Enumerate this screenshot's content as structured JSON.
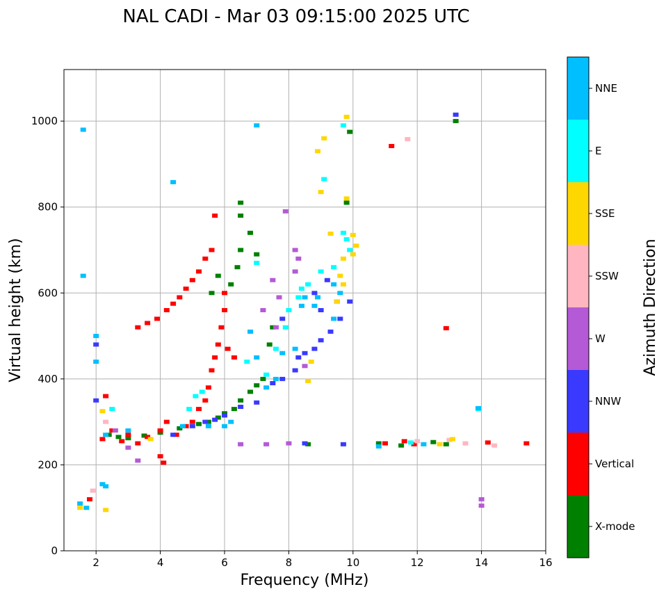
{
  "chart_data": {
    "type": "scatter",
    "title": "NAL CADI - Mar 03 09:15:00 2025 UTC",
    "xlabel": "Frequency (MHz)",
    "ylabel": "Virtual height (km)",
    "xlim": [
      1,
      16
    ],
    "ylim": [
      0,
      1120
    ],
    "xticks": [
      2,
      4,
      6,
      8,
      10,
      12,
      14,
      16
    ],
    "yticks": [
      0,
      200,
      400,
      600,
      800,
      1000
    ],
    "grid": true,
    "colorbar": {
      "label": "Azimuth Direction",
      "categories": [
        {
          "name": "X-mode",
          "color": "#008000"
        },
        {
          "name": "Vertical",
          "color": "#ff0000"
        },
        {
          "name": "NNW",
          "color": "#3a3aff"
        },
        {
          "name": "W",
          "color": "#b45ad6"
        },
        {
          "name": "SSW",
          "color": "#ffb6c1"
        },
        {
          "name": "SSE",
          "color": "#ffd700"
        },
        {
          "name": "E",
          "color": "#00ffff"
        },
        {
          "name": "NNE",
          "color": "#00bfff"
        }
      ]
    },
    "series": [
      {
        "name": "X-mode",
        "points": [
          [
            2.4,
            270
          ],
          [
            2.7,
            265
          ],
          [
            3.0,
            262
          ],
          [
            3.5,
            268
          ],
          [
            4.0,
            275
          ],
          [
            4.6,
            285
          ],
          [
            5.2,
            295
          ],
          [
            5.5,
            300
          ],
          [
            5.8,
            310
          ],
          [
            6.0,
            320
          ],
          [
            6.3,
            330
          ],
          [
            6.5,
            350
          ],
          [
            6.8,
            370
          ],
          [
            7.0,
            385
          ],
          [
            7.2,
            400
          ],
          [
            6.2,
            620
          ],
          [
            6.4,
            660
          ],
          [
            6.5,
            700
          ],
          [
            6.5,
            780
          ],
          [
            6.5,
            810
          ],
          [
            6.8,
            740
          ],
          [
            7.0,
            690
          ],
          [
            5.8,
            640
          ],
          [
            5.6,
            600
          ],
          [
            8.6,
            248
          ],
          [
            10.8,
            250
          ],
          [
            11.5,
            245
          ],
          [
            12.5,
            253
          ],
          [
            12.9,
            248
          ],
          [
            13.2,
            1000
          ],
          [
            9.8,
            810
          ],
          [
            9.9,
            975
          ],
          [
            7.5,
            520
          ],
          [
            7.4,
            480
          ]
        ]
      },
      {
        "name": "Vertical",
        "points": [
          [
            2.2,
            260
          ],
          [
            2.5,
            280
          ],
          [
            2.8,
            255
          ],
          [
            3.0,
            270
          ],
          [
            3.3,
            250
          ],
          [
            3.6,
            265
          ],
          [
            4.0,
            280
          ],
          [
            4.2,
            300
          ],
          [
            4.5,
            270
          ],
          [
            4.8,
            290
          ],
          [
            5.0,
            300
          ],
          [
            5.2,
            330
          ],
          [
            5.4,
            350
          ],
          [
            5.5,
            380
          ],
          [
            5.6,
            420
          ],
          [
            5.7,
            450
          ],
          [
            5.8,
            480
          ],
          [
            5.9,
            520
          ],
          [
            6.0,
            560
          ],
          [
            6.0,
            600
          ],
          [
            3.3,
            520
          ],
          [
            3.6,
            530
          ],
          [
            3.9,
            540
          ],
          [
            4.2,
            560
          ],
          [
            4.4,
            575
          ],
          [
            4.6,
            590
          ],
          [
            4.8,
            610
          ],
          [
            5.0,
            630
          ],
          [
            5.2,
            650
          ],
          [
            5.4,
            680
          ],
          [
            5.6,
            700
          ],
          [
            5.7,
            780
          ],
          [
            4.0,
            220
          ],
          [
            4.1,
            205
          ],
          [
            1.8,
            120
          ],
          [
            2.3,
            360
          ],
          [
            11.0,
            250
          ],
          [
            11.6,
            255
          ],
          [
            11.9,
            248
          ],
          [
            12.9,
            518
          ],
          [
            15.4,
            250
          ],
          [
            14.2,
            252
          ],
          [
            11.2,
            942
          ],
          [
            6.1,
            470
          ],
          [
            6.3,
            450
          ]
        ]
      },
      {
        "name": "NNW",
        "points": [
          [
            4.4,
            270
          ],
          [
            5.0,
            290
          ],
          [
            5.4,
            300
          ],
          [
            5.7,
            305
          ],
          [
            6.0,
            315
          ],
          [
            6.5,
            335
          ],
          [
            7.0,
            345
          ],
          [
            7.5,
            390
          ],
          [
            7.8,
            400
          ],
          [
            8.2,
            420
          ],
          [
            8.3,
            450
          ],
          [
            8.5,
            460
          ],
          [
            8.8,
            470
          ],
          [
            9.0,
            490
          ],
          [
            9.3,
            510
          ],
          [
            9.6,
            540
          ],
          [
            9.9,
            580
          ],
          [
            8.8,
            600
          ],
          [
            9.2,
            630
          ],
          [
            9.5,
            580
          ],
          [
            8.5,
            250
          ],
          [
            9.7,
            248
          ],
          [
            13.2,
            1015
          ],
          [
            2.0,
            480
          ],
          [
            2.0,
            350
          ],
          [
            7.8,
            540
          ],
          [
            9.0,
            560
          ]
        ]
      },
      {
        "name": "W",
        "points": [
          [
            8.2,
            700
          ],
          [
            8.3,
            680
          ],
          [
            8.2,
            650
          ],
          [
            7.9,
            790
          ],
          [
            7.5,
            630
          ],
          [
            7.7,
            590
          ],
          [
            8.5,
            430
          ],
          [
            2.6,
            280
          ],
          [
            3.0,
            240
          ],
          [
            3.3,
            210
          ],
          [
            14.0,
            120
          ],
          [
            14.0,
            105
          ],
          [
            6.5,
            248
          ],
          [
            7.3,
            248
          ],
          [
            8.0,
            250
          ],
          [
            7.6,
            520
          ],
          [
            7.2,
            560
          ]
        ]
      },
      {
        "name": "SSW",
        "points": [
          [
            12.0,
            255
          ],
          [
            13.0,
            258
          ],
          [
            13.5,
            250
          ],
          [
            14.4,
            245
          ],
          [
            11.7,
            958
          ],
          [
            1.9,
            140
          ],
          [
            2.3,
            300
          ]
        ]
      },
      {
        "name": "SSE",
        "points": [
          [
            8.9,
            930
          ],
          [
            9.1,
            960
          ],
          [
            9.8,
            1010
          ],
          [
            9.0,
            835
          ],
          [
            9.8,
            820
          ],
          [
            10.0,
            735
          ],
          [
            10.0,
            690
          ],
          [
            9.7,
            680
          ],
          [
            9.6,
            640
          ],
          [
            9.7,
            620
          ],
          [
            9.5,
            580
          ],
          [
            9.3,
            738
          ],
          [
            8.7,
            440
          ],
          [
            8.6,
            395
          ],
          [
            2.2,
            325
          ],
          [
            2.3,
            95
          ],
          [
            1.5,
            100
          ],
          [
            12.7,
            248
          ],
          [
            13.1,
            260
          ],
          [
            3.7,
            260
          ],
          [
            10.1,
            710
          ]
        ]
      },
      {
        "name": "E",
        "points": [
          [
            9.7,
            990
          ],
          [
            9.1,
            865
          ],
          [
            9.7,
            740
          ],
          [
            9.8,
            725
          ],
          [
            9.9,
            700
          ],
          [
            9.4,
            660
          ],
          [
            9.0,
            650
          ],
          [
            8.6,
            620
          ],
          [
            8.4,
            610
          ],
          [
            8.0,
            560
          ],
          [
            7.9,
            520
          ],
          [
            7.6,
            470
          ],
          [
            7.3,
            410
          ],
          [
            5.1,
            360
          ],
          [
            5.3,
            370
          ],
          [
            4.9,
            330
          ],
          [
            2.5,
            330
          ],
          [
            6.7,
            440
          ],
          [
            8.3,
            590
          ],
          [
            7.0,
            670
          ],
          [
            13.9,
            330
          ],
          [
            11.8,
            252
          ]
        ]
      },
      {
        "name": "NNE",
        "points": [
          [
            1.6,
            980
          ],
          [
            1.6,
            640
          ],
          [
            2.0,
            500
          ],
          [
            2.0,
            440
          ],
          [
            2.2,
            155
          ],
          [
            2.3,
            150
          ],
          [
            1.7,
            100
          ],
          [
            1.5,
            110
          ],
          [
            2.3,
            270
          ],
          [
            3.0,
            280
          ],
          [
            4.7,
            290
          ],
          [
            5.5,
            290
          ],
          [
            6.0,
            290
          ],
          [
            6.2,
            300
          ],
          [
            7.6,
            400
          ],
          [
            7.3,
            380
          ],
          [
            8.5,
            590
          ],
          [
            8.8,
            570
          ],
          [
            9.4,
            540
          ],
          [
            9.6,
            600
          ],
          [
            8.4,
            570
          ],
          [
            13.9,
            332
          ],
          [
            6.8,
            510
          ],
          [
            7.0,
            450
          ],
          [
            7.8,
            460
          ],
          [
            8.2,
            470
          ],
          [
            8.9,
            590
          ],
          [
            9.4,
            620
          ],
          [
            10.8,
            243
          ],
          [
            12.2,
            248
          ],
          [
            4.4,
            858
          ],
          [
            7.0,
            990
          ]
        ]
      }
    ]
  }
}
